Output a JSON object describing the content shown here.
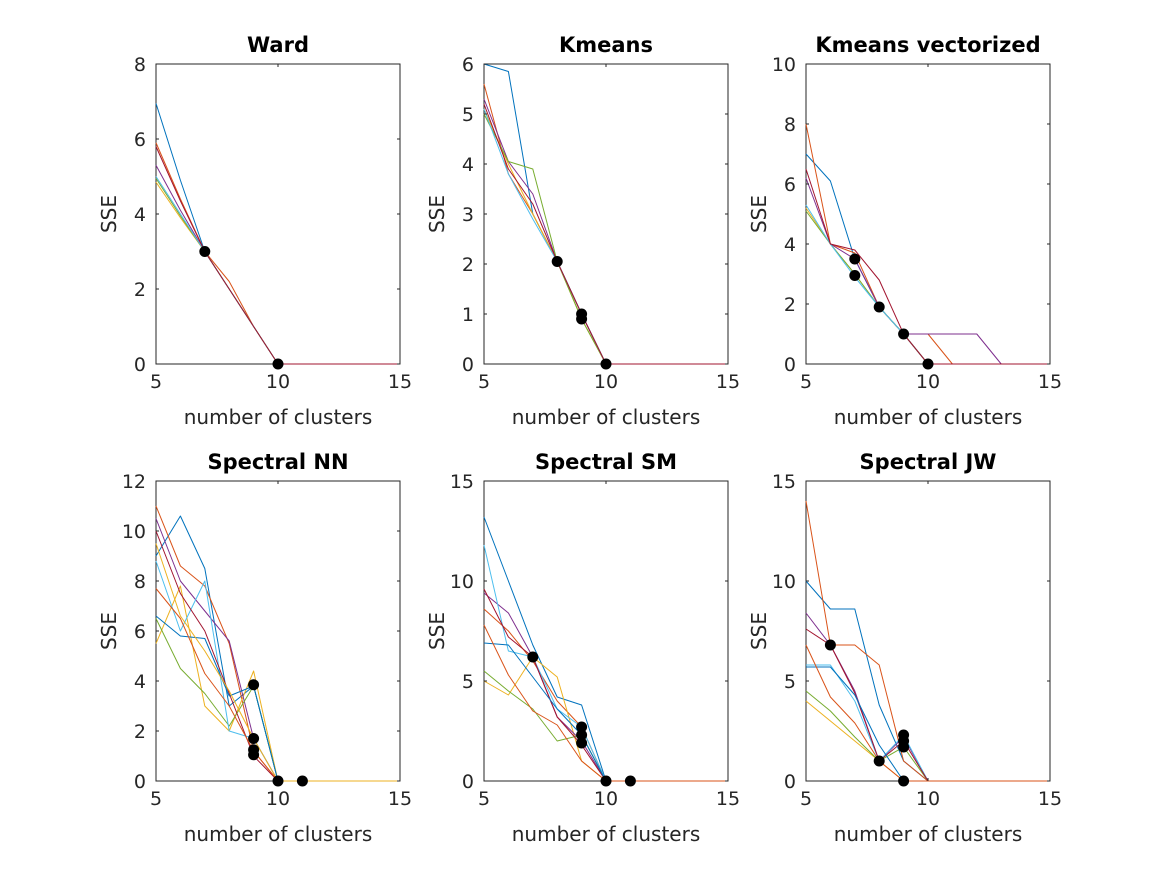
{
  "chart_data": [
    {
      "type": "line",
      "title": "Ward",
      "xlabel": "number of clusters",
      "ylabel": "SSE",
      "xlim": [
        5,
        15
      ],
      "ylim": [
        0,
        8
      ],
      "xticks": [
        5,
        10,
        15
      ],
      "yticks": [
        0,
        2,
        4,
        6,
        8
      ],
      "x": [
        5,
        6,
        7,
        8,
        9,
        10,
        11,
        12,
        13,
        14,
        15
      ],
      "series": [
        {
          "color": "#0072bd",
          "values": [
            6.95,
            4.9,
            3.0,
            2.0,
            1.0,
            0,
            0,
            0,
            0,
            0,
            0
          ]
        },
        {
          "color": "#d95319",
          "values": [
            5.9,
            4.4,
            3.0,
            2.2,
            1.0,
            0,
            0,
            0,
            0,
            0,
            0
          ]
        },
        {
          "color": "#edb120",
          "values": [
            4.85,
            3.9,
            3.0,
            2.0,
            1.0,
            0,
            0,
            0,
            0,
            0,
            0
          ]
        },
        {
          "color": "#7e2f8e",
          "values": [
            5.3,
            4.1,
            3.0,
            2.0,
            1.0,
            0,
            0,
            0,
            0,
            0,
            0
          ]
        },
        {
          "color": "#77ac30",
          "values": [
            4.95,
            3.95,
            3.0,
            2.0,
            1.0,
            0,
            0,
            0,
            0,
            0,
            0
          ]
        },
        {
          "color": "#4dbeee",
          "values": [
            5.0,
            4.0,
            3.0,
            2.0,
            1.0,
            0,
            0,
            0,
            0,
            0,
            0
          ]
        },
        {
          "color": "#a2142f",
          "values": [
            5.8,
            4.35,
            3.0,
            2.0,
            1.0,
            0,
            0,
            0,
            0,
            0,
            0
          ]
        }
      ],
      "markers": [
        [
          7,
          3.0
        ],
        [
          10,
          0
        ]
      ]
    },
    {
      "type": "line",
      "title": "Kmeans",
      "xlabel": "number of clusters",
      "ylabel": "SSE",
      "xlim": [
        5,
        15
      ],
      "ylim": [
        0,
        6
      ],
      "xticks": [
        5,
        10,
        15
      ],
      "yticks": [
        0,
        1,
        2,
        3,
        4,
        5,
        6
      ],
      "x": [
        5,
        6,
        7,
        8,
        9,
        10,
        11,
        12,
        13,
        14,
        15
      ],
      "series": [
        {
          "color": "#0072bd",
          "values": [
            6.0,
            5.85,
            3.0,
            2.05,
            1.0,
            0,
            0,
            0,
            0,
            0,
            0
          ]
        },
        {
          "color": "#d95319",
          "values": [
            5.6,
            3.8,
            3.0,
            2.05,
            1.0,
            0,
            0,
            0,
            0,
            0,
            0
          ]
        },
        {
          "color": "#edb120",
          "values": [
            5.1,
            4.0,
            3.0,
            2.05,
            0.9,
            0,
            0,
            0,
            0,
            0,
            0
          ]
        },
        {
          "color": "#7e2f8e",
          "values": [
            5.3,
            4.05,
            3.4,
            2.05,
            1.0,
            0,
            0,
            0,
            0,
            0,
            0
          ]
        },
        {
          "color": "#77ac30",
          "values": [
            5.0,
            4.05,
            3.9,
            2.05,
            0.9,
            0,
            0,
            0,
            0,
            0,
            0
          ]
        },
        {
          "color": "#4dbeee",
          "values": [
            5.1,
            3.8,
            2.9,
            2.05,
            1.0,
            0,
            0,
            0,
            0,
            0,
            0
          ]
        },
        {
          "color": "#a2142f",
          "values": [
            5.2,
            3.9,
            3.2,
            2.05,
            1.0,
            0,
            0,
            0,
            0,
            0,
            0
          ]
        }
      ],
      "markers": [
        [
          8,
          2.05
        ],
        [
          9,
          1.0
        ],
        [
          9,
          0.9
        ],
        [
          10,
          0
        ]
      ]
    },
    {
      "type": "line",
      "title": "Kmeans vectorized",
      "xlabel": "number of clusters",
      "ylabel": "SSE",
      "xlim": [
        5,
        15
      ],
      "ylim": [
        0,
        10
      ],
      "xticks": [
        5,
        10,
        15
      ],
      "yticks": [
        0,
        2,
        4,
        6,
        8,
        10
      ],
      "x": [
        5,
        6,
        7,
        8,
        9,
        10,
        11,
        12,
        13,
        14,
        15
      ],
      "series": [
        {
          "color": "#0072bd",
          "values": [
            7.0,
            6.1,
            3.5,
            1.9,
            1.0,
            0,
            0,
            0,
            0,
            0,
            0
          ]
        },
        {
          "color": "#d95319",
          "values": [
            8.0,
            4.0,
            3.7,
            1.9,
            1.0,
            1.0,
            0,
            0,
            0,
            0,
            0
          ]
        },
        {
          "color": "#edb120",
          "values": [
            5.2,
            4.0,
            3.0,
            1.9,
            1.0,
            0,
            0,
            0,
            0,
            0,
            0
          ]
        },
        {
          "color": "#7e2f8e",
          "values": [
            6.2,
            4.0,
            3.5,
            1.9,
            1.0,
            1.0,
            1.0,
            1.0,
            0,
            0,
            0
          ]
        },
        {
          "color": "#77ac30",
          "values": [
            5.1,
            4.0,
            3.0,
            1.9,
            1.0,
            0,
            0,
            0,
            0,
            0,
            0
          ]
        },
        {
          "color": "#4dbeee",
          "values": [
            5.3,
            4.0,
            2.9,
            1.9,
            1.0,
            0,
            0,
            0,
            0,
            0,
            0
          ]
        },
        {
          "color": "#a2142f",
          "values": [
            6.5,
            4.0,
            3.8,
            2.8,
            1.0,
            0,
            0,
            0,
            0,
            0,
            0
          ]
        }
      ],
      "markers": [
        [
          7,
          3.5
        ],
        [
          7,
          2.95
        ],
        [
          8,
          1.9
        ],
        [
          9,
          1.0
        ],
        [
          10,
          0
        ]
      ]
    },
    {
      "type": "line",
      "title": "Spectral NN",
      "xlabel": "number of clusters",
      "ylabel": "SSE",
      "xlim": [
        5,
        15
      ],
      "ylim": [
        0,
        12
      ],
      "xticks": [
        5,
        10,
        15
      ],
      "yticks": [
        0,
        2,
        4,
        6,
        8,
        10,
        12
      ],
      "x": [
        5,
        6,
        7,
        8,
        9,
        10,
        11,
        12,
        13,
        14,
        15
      ],
      "series": [
        {
          "color": "#0072bd",
          "values": [
            9.0,
            10.6,
            8.5,
            3.0,
            3.8,
            0,
            0,
            0,
            0,
            0,
            0
          ]
        },
        {
          "color": "#d95319",
          "values": [
            11.0,
            8.6,
            7.8,
            5.5,
            1.2,
            0,
            0,
            0,
            0,
            0,
            0
          ]
        },
        {
          "color": "#edb120",
          "values": [
            5.5,
            7.8,
            3.0,
            2.0,
            4.4,
            0,
            0,
            0,
            0,
            0,
            0
          ]
        },
        {
          "color": "#7e2f8e",
          "values": [
            10.5,
            8.0,
            6.8,
            5.6,
            1.7,
            0,
            0,
            0,
            0,
            0,
            0
          ]
        },
        {
          "color": "#77ac30",
          "values": [
            6.5,
            4.5,
            3.5,
            2.2,
            3.8,
            0,
            0,
            0,
            0,
            0,
            0
          ]
        },
        {
          "color": "#4dbeee",
          "values": [
            8.8,
            6.0,
            8.0,
            2.0,
            1.7,
            0,
            0,
            0,
            0,
            0,
            0
          ]
        },
        {
          "color": "#a2142f",
          "values": [
            10.0,
            7.5,
            6.0,
            3.5,
            1.0,
            0,
            0,
            0,
            0,
            0,
            0
          ]
        },
        {
          "color": "#0072bd",
          "values": [
            6.6,
            5.8,
            5.7,
            3.4,
            3.8,
            0,
            0,
            0,
            0,
            0,
            0
          ]
        },
        {
          "color": "#d95319",
          "values": [
            7.7,
            6.5,
            4.3,
            3.0,
            1.2,
            0,
            0,
            0,
            0,
            0,
            0
          ]
        },
        {
          "color": "#edb120",
          "values": [
            9.5,
            6.6,
            5.2,
            3.6,
            1.7,
            0,
            0,
            0,
            0,
            0,
            0
          ]
        }
      ],
      "markers": [
        [
          9,
          3.85
        ],
        [
          9,
          1.7
        ],
        [
          9,
          1.25
        ],
        [
          9,
          1.05
        ],
        [
          10,
          0
        ],
        [
          11,
          0
        ]
      ]
    },
    {
      "type": "line",
      "title": "Spectral SM",
      "xlabel": "number of clusters",
      "ylabel": "SSE",
      "xlim": [
        5,
        15
      ],
      "ylim": [
        0,
        15
      ],
      "xticks": [
        5,
        10,
        15
      ],
      "yticks": [
        0,
        5,
        10,
        15
      ],
      "x": [
        5,
        6,
        7,
        8,
        9,
        10,
        11,
        12,
        13,
        14,
        15
      ],
      "series": [
        {
          "color": "#0072bd",
          "values": [
            13.2,
            10.0,
            6.8,
            4.2,
            3.8,
            0,
            0,
            0,
            0,
            0,
            0
          ]
        },
        {
          "color": "#d95319",
          "values": [
            8.6,
            7.5,
            6.0,
            4.0,
            2.7,
            0,
            0,
            0,
            0,
            0,
            0
          ]
        },
        {
          "color": "#edb120",
          "values": [
            5.0,
            4.3,
            6.2,
            5.2,
            1.0,
            0,
            0,
            0,
            0,
            0,
            0
          ]
        },
        {
          "color": "#7e2f8e",
          "values": [
            9.4,
            8.4,
            6.2,
            3.2,
            2.0,
            0,
            0,
            0,
            0,
            0,
            0
          ]
        },
        {
          "color": "#77ac30",
          "values": [
            5.5,
            4.5,
            3.6,
            2.0,
            2.3,
            0,
            0,
            0,
            0,
            0,
            0
          ]
        },
        {
          "color": "#4dbeee",
          "values": [
            11.8,
            6.5,
            6.2,
            3.6,
            2.7,
            0,
            0,
            0,
            0,
            0,
            0
          ]
        },
        {
          "color": "#a2142f",
          "values": [
            9.6,
            7.2,
            6.2,
            3.2,
            1.8,
            0,
            0,
            0,
            0,
            0,
            0
          ]
        },
        {
          "color": "#0072bd",
          "values": [
            6.9,
            6.8,
            5.2,
            3.6,
            2.3,
            0,
            0,
            0,
            0,
            0,
            0
          ]
        },
        {
          "color": "#d95319",
          "values": [
            7.8,
            5.3,
            3.5,
            2.8,
            1.0,
            0,
            0,
            0,
            0,
            0,
            0
          ]
        }
      ],
      "markers": [
        [
          7,
          6.2
        ],
        [
          9,
          2.7
        ],
        [
          9,
          2.3
        ],
        [
          9,
          1.9
        ],
        [
          10,
          0
        ],
        [
          11,
          0
        ]
      ]
    },
    {
      "type": "line",
      "title": "Spectral JW",
      "xlabel": "number of clusters",
      "ylabel": "SSE",
      "xlim": [
        5,
        15
      ],
      "ylim": [
        0,
        15
      ],
      "xticks": [
        5,
        10,
        15
      ],
      "yticks": [
        0,
        5,
        10,
        15
      ],
      "x": [
        5,
        6,
        7,
        8,
        9,
        10,
        11,
        12,
        13,
        14,
        15
      ],
      "series": [
        {
          "color": "#0072bd",
          "values": [
            10.0,
            8.6,
            8.6,
            3.8,
            1.0,
            0,
            0,
            0,
            0,
            0,
            0
          ]
        },
        {
          "color": "#d95319",
          "values": [
            14.0,
            6.8,
            6.8,
            5.8,
            1.0,
            0,
            0,
            0,
            0,
            0,
            0
          ]
        },
        {
          "color": "#edb120",
          "values": [
            4.0,
            3.0,
            2.0,
            1.0,
            0,
            0,
            0,
            0,
            0,
            0,
            0
          ]
        },
        {
          "color": "#7e2f8e",
          "values": [
            8.4,
            6.8,
            4.5,
            1.0,
            2.2,
            0,
            0,
            0,
            0,
            0,
            0
          ]
        },
        {
          "color": "#77ac30",
          "values": [
            4.5,
            3.5,
            2.2,
            1.0,
            1.7,
            0,
            0,
            0,
            0,
            0,
            0
          ]
        },
        {
          "color": "#4dbeee",
          "values": [
            5.8,
            5.8,
            4.0,
            1.0,
            2.3,
            0,
            0,
            0,
            0,
            0,
            0
          ]
        },
        {
          "color": "#a2142f",
          "values": [
            7.6,
            6.8,
            4.4,
            1.0,
            2.0,
            0,
            0,
            0,
            0,
            0,
            0
          ]
        },
        {
          "color": "#0072bd",
          "values": [
            5.7,
            5.7,
            4.3,
            1.8,
            0,
            0,
            0,
            0,
            0,
            0,
            0
          ]
        },
        {
          "color": "#d95319",
          "values": [
            6.8,
            4.2,
            2.9,
            1.0,
            0,
            0,
            0,
            0,
            0,
            0,
            0
          ]
        }
      ],
      "markers": [
        [
          6,
          6.8
        ],
        [
          8,
          1.0
        ],
        [
          9,
          2.3
        ],
        [
          9,
          2.0
        ],
        [
          9,
          1.7
        ],
        [
          9,
          0
        ]
      ]
    }
  ]
}
